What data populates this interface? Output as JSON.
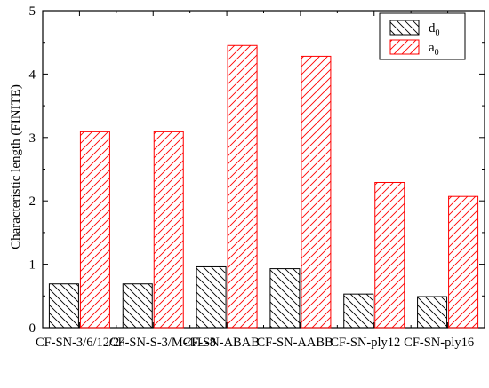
{
  "chart_data": {
    "type": "bar",
    "categories": [
      "CF-SN-3/6/12/24",
      "CF-SN-S-3/M-4/L-8",
      "CF-SN-ABAB",
      "CF-SN-AABB",
      "CF-SN-ply12",
      "CF-SN-ply16"
    ],
    "series": [
      {
        "name": "d",
        "subscript": "0",
        "values": [
          0.69,
          0.69,
          0.96,
          0.93,
          0.53,
          0.49
        ],
        "color": "#000000",
        "pattern": "hatch-back"
      },
      {
        "name": "a",
        "subscript": "0",
        "values": [
          3.09,
          3.09,
          4.45,
          4.28,
          2.29,
          2.07
        ],
        "color": "#ff0000",
        "pattern": "hatch-forward"
      }
    ],
    "title": "",
    "xlabel": "",
    "ylabel": "Characteristic length (FINITE)",
    "ylim": [
      0,
      5
    ],
    "yticks": [
      0,
      1,
      2,
      3,
      4,
      5
    ],
    "grid": false,
    "legend_position": "top-right"
  }
}
